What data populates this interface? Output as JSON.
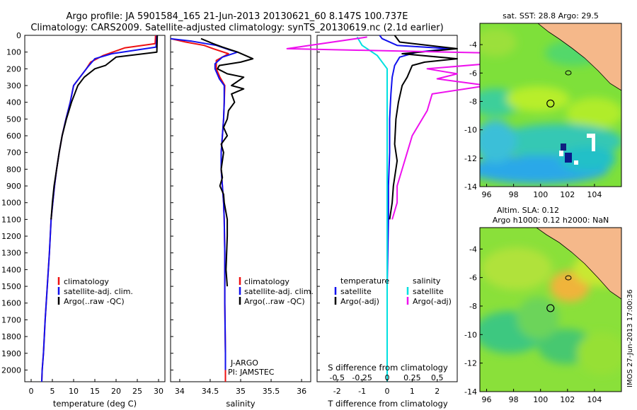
{
  "figure": {
    "title_line1": "Argo profile: JA 5901584_165 21-Jun-2013 20130621_60 8.147S 100.737E",
    "title_line2": "Climatology: CARS2009. Satellite-adjusted climatology: synTS_20130619.nc (2.1d earlier)",
    "credit": "IMOS 27-Jun-2013 17:00:36",
    "colors": {
      "climatology": "#ee1111",
      "satellite": "#1111ee",
      "argo": "#000000",
      "satellite_salinity": "#00e0e0",
      "argo_salinity": "#ee11ee",
      "ocean_field": "#7ee03a",
      "land": "#f5b88a"
    }
  },
  "depth_axis": {
    "ticks": [
      "0",
      "100",
      "200",
      "300",
      "400",
      "500",
      "600",
      "700",
      "800",
      "900",
      "1000",
      "1100",
      "1200",
      "1300",
      "1400",
      "1500",
      "1600",
      "1700",
      "1800",
      "1900",
      "2000"
    ]
  },
  "temperature_panel": {
    "xlabel": "temperature (deg C)",
    "xticks": [
      "0",
      "5",
      "10",
      "15",
      "20",
      "25",
      "30"
    ],
    "legend": [
      "climatology",
      "satellite-adj. clim.",
      "Argo(..raw -QC)"
    ]
  },
  "salinity_panel": {
    "xlabel": "salinity",
    "xticks": [
      "34",
      "34.5",
      "35",
      "35.5",
      "36"
    ],
    "legend": [
      "climatology",
      "satellite-adj. clim.",
      "Argo(..raw -QC)"
    ],
    "annotation_line1": "J-ARGO",
    "annotation_line2": "PI: JAMSTEC"
  },
  "difference_panel": {
    "xlabel": "T difference from climatology",
    "xticks": [
      "-2",
      "-1",
      "0",
      "1",
      "2"
    ],
    "top_label": "S difference from climatology",
    "top_ticks": [
      "-0.5",
      "-0.25",
      "0",
      "0.25",
      "0.5"
    ],
    "legend_temp_head": "temperature",
    "legend_sal_head": "salinity",
    "legend_temp": [
      "satellite",
      "Argo(-adj)"
    ],
    "legend_sal": [
      "satellite",
      "Argo(-adj)"
    ]
  },
  "map_sst": {
    "title": "sat. SST: 28.8 Argo: 29.5",
    "xticks": [
      "96",
      "98",
      "100",
      "102",
      "104"
    ],
    "yticks": [
      "-4",
      "-6",
      "-8",
      "-10",
      "-12",
      "-14"
    ]
  },
  "map_sla": {
    "title_line1": "Altim. SLA: 0.12",
    "title_line2": "Argo h1000: 0.12 h2000: NaN",
    "xticks": [
      "96",
      "98",
      "100",
      "102",
      "104"
    ],
    "yticks": [
      "-4",
      "-6",
      "-8",
      "-10",
      "-12",
      "-14"
    ]
  },
  "chart_data": [
    {
      "type": "line",
      "panel": "temperature",
      "ylabel": "",
      "xlabel": "temperature (deg C)",
      "xlim": [
        -1.5,
        31.5
      ],
      "ylim": [
        2070,
        0
      ],
      "y_inverted": true,
      "series": [
        {
          "name": "climatology",
          "points": [
            [
              29.3,
              0
            ],
            [
              29.2,
              50
            ],
            [
              22,
              75
            ],
            [
              17,
              120
            ],
            [
              14,
              160
            ],
            [
              13,
              200
            ],
            [
              11.5,
              250
            ],
            [
              10,
              300
            ],
            [
              9.2,
              400
            ],
            [
              8.2,
              500
            ],
            [
              7.3,
              600
            ],
            [
              6.6,
              700
            ],
            [
              6,
              800
            ],
            [
              5.5,
              900
            ],
            [
              5.1,
              1000
            ],
            [
              4.7,
              1100
            ],
            [
              4.3,
              1300
            ],
            [
              3.8,
              1500
            ],
            [
              3.3,
              1700
            ],
            [
              2.9,
              1900
            ],
            [
              2.6,
              2000
            ],
            [
              2.5,
              2070
            ]
          ]
        },
        {
          "name": "satellite-adj. clim.",
          "points": [
            [
              29.6,
              0
            ],
            [
              29.5,
              40
            ],
            [
              29.4,
              70
            ],
            [
              19,
              110
            ],
            [
              15,
              140
            ],
            [
              13.3,
              190
            ],
            [
              11.5,
              250
            ],
            [
              10,
              300
            ],
            [
              9.2,
              400
            ],
            [
              8.2,
              500
            ],
            [
              7.3,
              600
            ],
            [
              6.6,
              700
            ],
            [
              6,
              800
            ],
            [
              5.5,
              900
            ],
            [
              5.1,
              1000
            ],
            [
              4.7,
              1100
            ],
            [
              4.3,
              1300
            ],
            [
              3.8,
              1500
            ],
            [
              3.3,
              1700
            ],
            [
              2.9,
              1900
            ],
            [
              2.6,
              2000
            ],
            [
              2.5,
              2070
            ]
          ]
        },
        {
          "name": "Argo(..raw -QC)",
          "points": [
            [
              29.7,
              0
            ],
            [
              29.6,
              100
            ],
            [
              20,
              130
            ],
            [
              17.5,
              180
            ],
            [
              15,
              200
            ],
            [
              12.5,
              250
            ],
            [
              11,
              300
            ],
            [
              9.5,
              400
            ],
            [
              8.3,
              500
            ],
            [
              7.3,
              600
            ],
            [
              6.6,
              700
            ],
            [
              6,
              800
            ],
            [
              5.4,
              900
            ],
            [
              5,
              1000
            ],
            [
              4.7,
              1100
            ]
          ]
        }
      ]
    },
    {
      "type": "line",
      "panel": "salinity",
      "xlabel": "salinity",
      "xlim": [
        33.85,
        36.15
      ],
      "ylim": [
        2070,
        0
      ],
      "y_inverted": true,
      "series": [
        {
          "name": "climatology",
          "points": [
            [
              33.85,
              20
            ],
            [
              34.1,
              40
            ],
            [
              34.4,
              60
            ],
            [
              34.55,
              80
            ],
            [
              34.8,
              110
            ],
            [
              34.6,
              150
            ],
            [
              34.6,
              200
            ],
            [
              34.66,
              250
            ],
            [
              34.74,
              300
            ],
            [
              34.73,
              400
            ],
            [
              34.72,
              500
            ],
            [
              34.7,
              600
            ],
            [
              34.68,
              700
            ],
            [
              34.68,
              800
            ],
            [
              34.7,
              900
            ],
            [
              34.72,
              1000
            ],
            [
              34.73,
              1100
            ],
            [
              34.74,
              1300
            ],
            [
              34.74,
              1600
            ],
            [
              34.75,
              1900
            ],
            [
              34.75,
              2070
            ]
          ]
        },
        {
          "name": "satellite-adj. clim.",
          "points": [
            [
              33.85,
              20
            ],
            [
              34.2,
              35
            ],
            [
              34.6,
              60
            ],
            [
              34.8,
              85
            ],
            [
              34.95,
              100
            ],
            [
              34.7,
              130
            ],
            [
              34.58,
              170
            ],
            [
              34.58,
              200
            ],
            [
              34.65,
              260
            ],
            [
              34.73,
              300
            ],
            [
              34.73,
              400
            ],
            [
              34.72,
              500
            ],
            [
              34.7,
              600
            ],
            [
              34.68,
              700
            ],
            [
              34.68,
              800
            ],
            [
              34.7,
              900
            ],
            [
              34.72,
              1000
            ],
            [
              34.73,
              1100
            ],
            [
              34.74,
              1300
            ],
            [
              34.74,
              1600
            ],
            [
              34.75,
              1900
            ],
            [
              34.75,
              2000
            ]
          ]
        },
        {
          "name": "Argo(..raw -QC)",
          "points": [
            [
              34.35,
              20
            ],
            [
              34.55,
              50
            ],
            [
              34.7,
              70
            ],
            [
              34.95,
              100
            ],
            [
              35.2,
              140
            ],
            [
              35.0,
              160
            ],
            [
              34.65,
              180
            ],
            [
              34.62,
              200
            ],
            [
              34.78,
              230
            ],
            [
              35.05,
              250
            ],
            [
              34.85,
              300
            ],
            [
              35.05,
              320
            ],
            [
              34.85,
              350
            ],
            [
              34.9,
              400
            ],
            [
              34.8,
              450
            ],
            [
              34.78,
              500
            ],
            [
              34.72,
              550
            ],
            [
              34.78,
              600
            ],
            [
              34.68,
              650
            ],
            [
              34.72,
              700
            ],
            [
              34.68,
              800
            ],
            [
              34.7,
              850
            ],
            [
              34.66,
              900
            ],
            [
              34.72,
              950
            ],
            [
              34.73,
              1000
            ],
            [
              34.78,
              1100
            ],
            [
              34.78,
              1200
            ],
            [
              34.76,
              1400
            ],
            [
              34.78,
              1500
            ]
          ]
        }
      ]
    },
    {
      "type": "line",
      "panel": "difference",
      "xlabel": "T difference from climatology",
      "xlim": [
        -2.8,
        2.8
      ],
      "ylim": [
        2070,
        0
      ],
      "y_inverted": true,
      "series": [
        {
          "name": "temperature satellite",
          "points": [
            [
              -0.3,
              0
            ],
            [
              -0.2,
              20
            ],
            [
              0.4,
              60
            ],
            [
              2.5,
              80
            ],
            [
              1.2,
              100
            ],
            [
              0.5,
              130
            ],
            [
              0.3,
              180
            ],
            [
              0.2,
              250
            ],
            [
              0.15,
              350
            ],
            [
              0.1,
              500
            ],
            [
              0.1,
              700
            ],
            [
              0.05,
              900
            ],
            [
              0.05,
              1100
            ],
            [
              0,
              1500
            ],
            [
              0,
              2000
            ]
          ]
        },
        {
          "name": "temperature Argo(-adj)",
          "points": [
            [
              0.3,
              0
            ],
            [
              0.5,
              40
            ],
            [
              2.8,
              80
            ],
            [
              0.6,
              110
            ],
            [
              2.8,
              140
            ],
            [
              1.5,
              160
            ],
            [
              1.0,
              180
            ],
            [
              0.8,
              250
            ],
            [
              0.6,
              300
            ],
            [
              0.45,
              400
            ],
            [
              0.35,
              500
            ],
            [
              0.3,
              650
            ],
            [
              0.4,
              750
            ],
            [
              0.25,
              900
            ],
            [
              0.2,
              1000
            ],
            [
              0.1,
              1100
            ]
          ]
        },
        {
          "name": "salinity satellite",
          "points": [
            [
              -0.3,
              10
            ],
            [
              -0.25,
              60
            ],
            [
              -0.1,
              120
            ],
            [
              0,
              200
            ],
            [
              0,
              400
            ],
            [
              0,
              800
            ],
            [
              0,
              1200
            ],
            [
              0,
              1600
            ],
            [
              0,
              2070
            ]
          ]
        },
        {
          "name": "salinity Argo(-adj)",
          "points": [
            [
              -0.2,
              10
            ],
            [
              -1.0,
              80
            ],
            [
              2.2,
              120
            ],
            [
              1.2,
              160
            ],
            [
              0.4,
              200
            ],
            [
              0.7,
              230
            ],
            [
              0.5,
              260
            ],
            [
              1.0,
              300
            ],
            [
              0.45,
              350
            ],
            [
              0.4,
              450
            ],
            [
              0.35,
              500
            ],
            [
              0.25,
              600
            ],
            [
              0.2,
              700
            ],
            [
              0.15,
              800
            ],
            [
              0.1,
              900
            ],
            [
              0.1,
              1000
            ],
            [
              0.05,
              1100
            ]
          ]
        }
      ]
    },
    {
      "type": "heatmap",
      "panel": "map_sst",
      "title": "sat. SST: 28.8 Argo: 29.5",
      "xlim": [
        95.5,
        106
      ],
      "ylim": [
        -14,
        -2.5
      ],
      "argo_position": {
        "lon": 100.737,
        "lat": -8.147
      }
    },
    {
      "type": "heatmap",
      "panel": "map_sla",
      "title": "Altim. SLA: 0.12",
      "xlim": [
        95.5,
        106
      ],
      "ylim": [
        -14,
        -2.5
      ],
      "argo_position": {
        "lon": 100.737,
        "lat": -8.147
      }
    }
  ]
}
